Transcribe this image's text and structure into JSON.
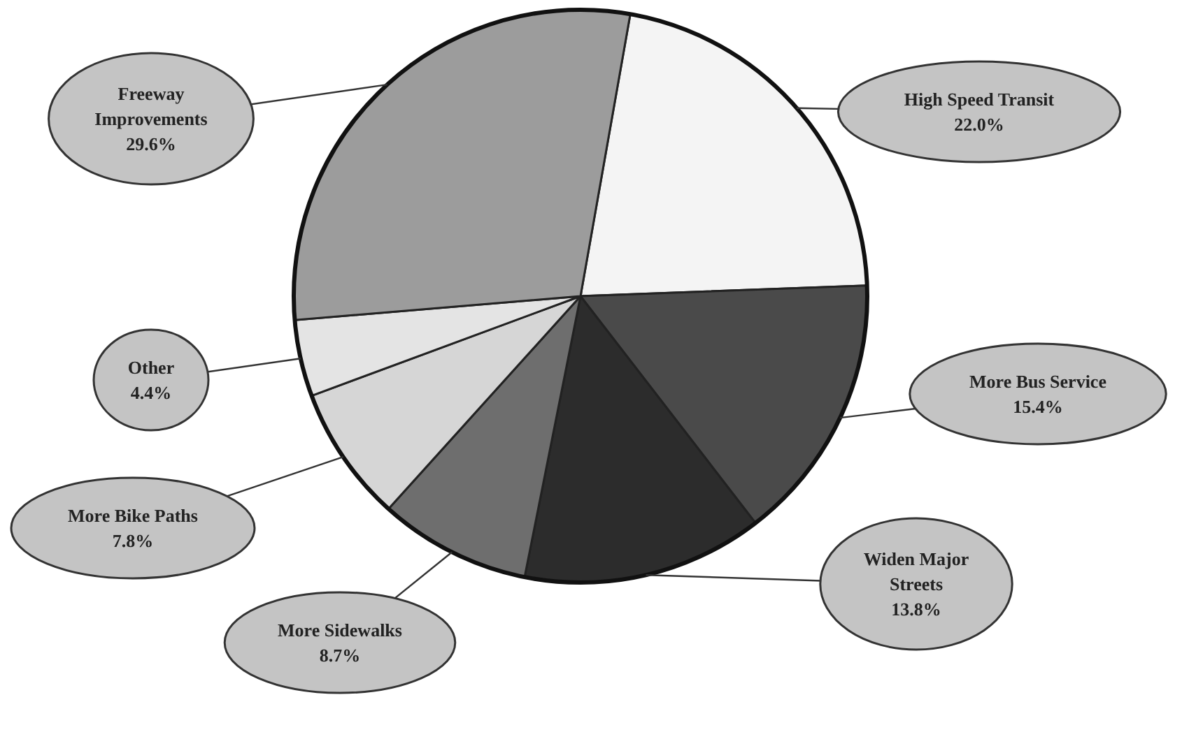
{
  "chart_data": {
    "type": "pie",
    "categories": [
      "High Speed Transit",
      "More Bus Service",
      "Widen Major Streets",
      "More Sidewalks",
      "More Bike Paths",
      "Other",
      "Freeway Improvements"
    ],
    "values": [
      22.0,
      15.4,
      13.8,
      8.7,
      7.8,
      4.4,
      29.6
    ],
    "value_labels": [
      "22.0%",
      "15.4%",
      "13.8%",
      "8.7%",
      "7.8%",
      "4.4%",
      "29.6%"
    ],
    "colors": [
      "#f4f4f4",
      "#4a4a4a",
      "#2c2c2c",
      "#6e6e6e",
      "#d6d6d6",
      "#e4e4e4",
      "#9c9c9c"
    ]
  }
}
